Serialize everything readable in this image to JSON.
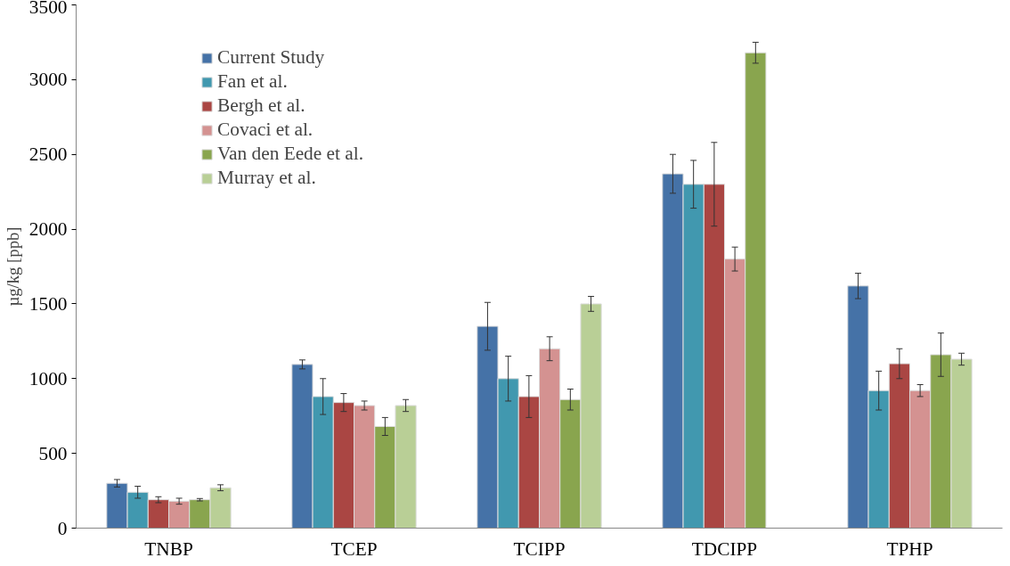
{
  "chart_data": {
    "type": "bar",
    "ylabel": "µg/kg [ppb]",
    "categories": [
      "TNBP",
      "TCEP",
      "TCIPP",
      "TDCIPP",
      "TPHP"
    ],
    "ylim": [
      0,
      3500
    ],
    "yticks": [
      0,
      500,
      1000,
      1500,
      2000,
      2500,
      3000,
      3500
    ],
    "grid": false,
    "legend": "top left",
    "series": [
      {
        "name": "Current Study",
        "color": "#4572a7",
        "values": [
          300,
          1095,
          1350,
          2370,
          1620
        ],
        "errors": [
          25,
          30,
          160,
          130,
          85
        ]
      },
      {
        "name": "Fan et al.",
        "color": "#4198af",
        "values": [
          240,
          880,
          1000,
          2300,
          920
        ],
        "errors": [
          40,
          120,
          150,
          160,
          130
        ]
      },
      {
        "name": "Bergh et al.",
        "color": "#aa4643",
        "values": [
          190,
          840,
          880,
          2300,
          1100
        ],
        "errors": [
          20,
          60,
          140,
          280,
          100
        ]
      },
      {
        "name": "Covaci et al.",
        "color": "#d49291",
        "values": [
          180,
          820,
          1200,
          1800,
          920
        ],
        "errors": [
          20,
          30,
          80,
          80,
          40
        ]
      },
      {
        "name": "Van den Eede et al.",
        "color": "#89a54e",
        "values": [
          190,
          680,
          860,
          3180,
          1160
        ],
        "errors": [
          8,
          60,
          70,
          70,
          145
        ]
      },
      {
        "name": "Murray et al.",
        "color": "#b9cf96",
        "values": [
          270,
          820,
          1500,
          null,
          1130
        ],
        "errors": [
          20,
          40,
          50,
          null,
          40
        ]
      }
    ]
  }
}
